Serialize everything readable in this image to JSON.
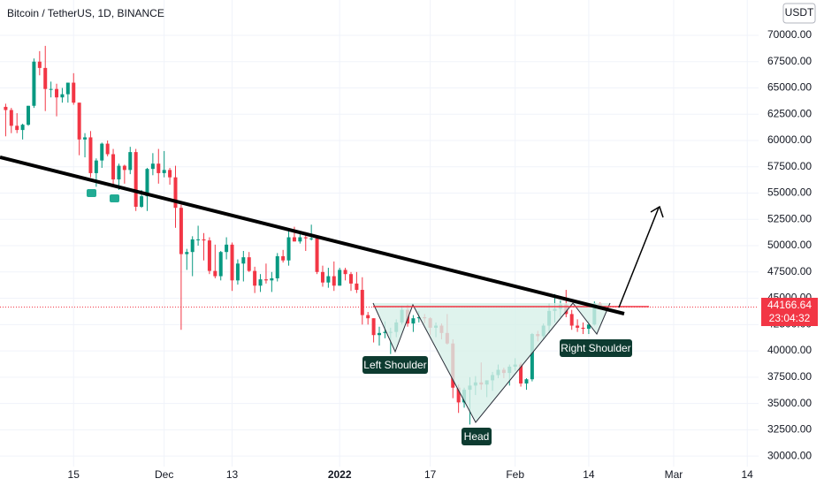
{
  "chart_data": {
    "type": "candlestick",
    "title": "Bitcoin / TetherUS, 1D, BINANCE",
    "currency": "USDT",
    "countdown": "23:04:32",
    "annotations": [
      "Left Shoulder",
      "Head",
      "Right Shoulder"
    ],
    "up_color": "#089981",
    "down_color": "#f23645",
    "x": [
      "2021-11-03",
      "2021-11-04",
      "2021-11-05",
      "2021-11-06",
      "2021-11-07",
      "2021-11-08",
      "2021-11-09",
      "2021-11-10",
      "2021-11-11",
      "2021-11-12",
      "2021-11-13",
      "2021-11-14",
      "2021-11-15",
      "2021-11-16",
      "2021-11-17",
      "2021-11-18",
      "2021-11-19",
      "2021-11-20",
      "2021-11-21",
      "2021-11-22",
      "2021-11-23",
      "2021-11-24",
      "2021-11-25",
      "2021-11-26",
      "2021-11-27",
      "2021-11-28",
      "2021-11-29",
      "2021-11-30",
      "2021-12-01",
      "2021-12-02",
      "2021-12-03",
      "2021-12-04",
      "2021-12-05",
      "2021-12-06",
      "2021-12-07",
      "2021-12-08",
      "2021-12-09",
      "2021-12-10",
      "2021-12-11",
      "2021-12-12",
      "2021-12-13",
      "2021-12-14",
      "2021-12-15",
      "2021-12-16",
      "2021-12-17",
      "2021-12-18",
      "2021-12-19",
      "2021-12-20",
      "2021-12-21",
      "2021-12-22",
      "2021-12-23",
      "2021-12-24",
      "2021-12-25",
      "2021-12-26",
      "2021-12-27",
      "2021-12-28",
      "2021-12-29",
      "2021-12-30",
      "2021-12-31",
      "2022-01-01",
      "2022-01-02",
      "2022-01-03",
      "2022-01-04",
      "2022-01-05",
      "2022-01-06",
      "2022-01-07",
      "2022-01-08",
      "2022-01-09",
      "2022-01-10",
      "2022-01-11",
      "2022-01-12",
      "2022-01-13",
      "2022-01-14",
      "2022-01-15",
      "2022-01-16",
      "2022-01-17",
      "2022-01-18",
      "2022-01-19",
      "2022-01-20",
      "2022-01-21",
      "2022-01-22",
      "2022-01-23",
      "2022-01-24",
      "2022-01-25",
      "2022-01-26",
      "2022-01-27",
      "2022-01-28",
      "2022-01-29",
      "2022-01-30",
      "2022-01-31",
      "2022-02-01",
      "2022-02-02",
      "2022-02-03",
      "2022-02-04",
      "2022-02-05",
      "2022-02-06",
      "2022-02-07",
      "2022-02-08",
      "2022-02-09",
      "2022-02-10",
      "2022-02-11",
      "2022-02-12",
      "2022-02-13",
      "2022-02-14",
      "2022-02-15",
      "2022-02-16"
    ],
    "open": [
      63200,
      62900,
      61400,
      61000,
      61500,
      63300,
      67500,
      66900,
      64900,
      64900,
      64100,
      64400,
      65500,
      63600,
      60100,
      60300,
      56900,
      58100,
      59700,
      58700,
      56300,
      57600,
      57200,
      58900,
      53700,
      54700,
      57300,
      57800,
      56900,
      57200,
      56500,
      53600,
      49200,
      49400,
      50600,
      50600,
      50500,
      47600,
      47100,
      49400,
      50100,
      46700,
      48300,
      48900,
      47600,
      46200,
      46800,
      46700,
      46900,
      49000,
      48600,
      50800,
      50400,
      50800,
      50700,
      50700,
      47500,
      46500,
      47100,
      46200,
      47700,
      47300,
      46400,
      45800,
      43400,
      43100,
      41500,
      41700,
      41800,
      41800,
      42700,
      43900,
      42600,
      43100,
      43200,
      43100,
      42200,
      42400,
      41700,
      40700,
      36500,
      35100,
      36300,
      36700,
      37000,
      36800,
      37200,
      37700,
      38200,
      37900,
      38500,
      38700,
      36900,
      37300,
      41600,
      41400,
      42400,
      43800,
      44000,
      44400,
      43500,
      42400,
      42200,
      42100,
      42500,
      44500
    ],
    "high": [
      63500,
      63100,
      62600,
      61600,
      63300,
      67800,
      68500,
      69000,
      65600,
      65400,
      65000,
      65500,
      66400,
      63600,
      60700,
      60900,
      58300,
      59800,
      60000,
      59200,
      57800,
      57700,
      59400,
      59200,
      55300,
      57400,
      58800,
      59200,
      59000,
      57400,
      57600,
      53900,
      49700,
      50900,
      51900,
      51200,
      50800,
      50100,
      49500,
      50800,
      50300,
      48700,
      49500,
      49400,
      48000,
      47300,
      48300,
      47500,
      49300,
      49600,
      51400,
      51800,
      51100,
      51300,
      52000,
      50700,
      48100,
      47900,
      48500,
      47900,
      47900,
      47500,
      47500,
      47000,
      43700,
      43100,
      42300,
      42800,
      42200,
      43000,
      44300,
      44400,
      43400,
      43800,
      43500,
      43200,
      42700,
      42600,
      43500,
      41100,
      36800,
      36500,
      37500,
      37600,
      38900,
      37200,
      38000,
      38700,
      38400,
      38700,
      39300,
      38900,
      37400,
      41700,
      41900,
      42600,
      44500,
      45400,
      44800,
      45800,
      43900,
      43000,
      42700,
      42900,
      44700,
      44600
    ],
    "low": [
      60400,
      60700,
      60700,
      60100,
      61400,
      63100,
      66200,
      62800,
      64100,
      62300,
      63600,
      63600,
      63400,
      58600,
      58400,
      56500,
      55600,
      57400,
      58500,
      55600,
      55300,
      55900,
      56800,
      53300,
      53600,
      53300,
      56700,
      55900,
      56500,
      55800,
      51700,
      42000,
      47700,
      47100,
      50000,
      48600,
      47300,
      46900,
      46700,
      48700,
      45700,
      46300,
      46600,
      47500,
      45500,
      45600,
      46400,
      45600,
      46600,
      48400,
      48100,
      50400,
      50200,
      49500,
      50500,
      47300,
      46100,
      46000,
      45700,
      46200,
      46700,
      45700,
      45500,
      42500,
      42500,
      40800,
      40500,
      41200,
      39700,
      41300,
      42500,
      42300,
      41800,
      42700,
      42600,
      41500,
      41300,
      41100,
      40600,
      35500,
      34100,
      34600,
      33000,
      35800,
      36300,
      35600,
      36200,
      37400,
      37400,
      36700,
      38100,
      36600,
      36300,
      37100,
      40900,
      41100,
      41700,
      42700,
      43200,
      43200,
      42000,
      41800,
      41600,
      41600,
      42400,
      43900
    ],
    "close": [
      62900,
      61400,
      61000,
      61500,
      63300,
      67500,
      66900,
      64900,
      64900,
      64100,
      64400,
      65500,
      63600,
      60100,
      60300,
      56900,
      58100,
      59700,
      58700,
      56300,
      57600,
      57200,
      58900,
      53700,
      54700,
      57300,
      57800,
      56900,
      57200,
      56500,
      53600,
      49200,
      49400,
      50600,
      50600,
      50500,
      47600,
      47100,
      49400,
      50100,
      46700,
      48300,
      48900,
      47600,
      46200,
      46800,
      46700,
      46900,
      49000,
      48600,
      50800,
      50400,
      50800,
      50700,
      50700,
      47500,
      46500,
      47100,
      46200,
      47700,
      47300,
      46400,
      45800,
      43400,
      43100,
      41500,
      41700,
      41800,
      41800,
      42700,
      43900,
      42600,
      43100,
      43200,
      43100,
      42200,
      42400,
      41700,
      40700,
      36500,
      35100,
      36300,
      36700,
      37000,
      36800,
      37200,
      37700,
      38200,
      37900,
      38500,
      38700,
      36900,
      37300,
      41600,
      41400,
      42400,
      43800,
      44000,
      44400,
      43500,
      42400,
      42200,
      42100,
      42500,
      44500,
      44166.64
    ],
    "xlim": [
      "2021-11-02",
      "2022-03-16"
    ],
    "xticks": [
      {
        "value": "2021-11-15",
        "label": "15"
      },
      {
        "value": "2021-12-01",
        "label": "Dec"
      },
      {
        "value": "2021-12-13",
        "label": "13"
      },
      {
        "value": "2022-01-01",
        "label": "2022"
      },
      {
        "value": "2022-01-17",
        "label": "17"
      },
      {
        "value": "2022-02-01",
        "label": "Feb"
      },
      {
        "value": "2022-02-14",
        "label": "14"
      },
      {
        "value": "2022-03-01",
        "label": "Mar"
      },
      {
        "value": "2022-03-14",
        "label": "14"
      }
    ],
    "ylim": [
      29000,
      73360
    ],
    "yticks": [
      {
        "value": 30000,
        "label": "30000.00"
      },
      {
        "value": 32500,
        "label": "32500.00"
      },
      {
        "value": 35000,
        "label": "35000.00"
      },
      {
        "value": 37500,
        "label": "37500.00"
      },
      {
        "value": 40000,
        "label": "40000.00"
      },
      {
        "value": 42500,
        "label": "42500.00"
      },
      {
        "value": 45000,
        "label": "45000.00"
      },
      {
        "value": 47500,
        "label": "47500.00"
      },
      {
        "value": 50000,
        "label": "50000.00"
      },
      {
        "value": 52500,
        "label": "52500.00"
      },
      {
        "value": 55000,
        "label": "55000.00"
      },
      {
        "value": 57500,
        "label": "57500.00"
      },
      {
        "value": 60000,
        "label": "60000.00"
      },
      {
        "value": 62500,
        "label": "62500.00"
      },
      {
        "value": 65000,
        "label": "65000.00"
      },
      {
        "value": 67500,
        "label": "67500.00"
      },
      {
        "value": 70000,
        "label": "70000.00"
      }
    ]
  }
}
